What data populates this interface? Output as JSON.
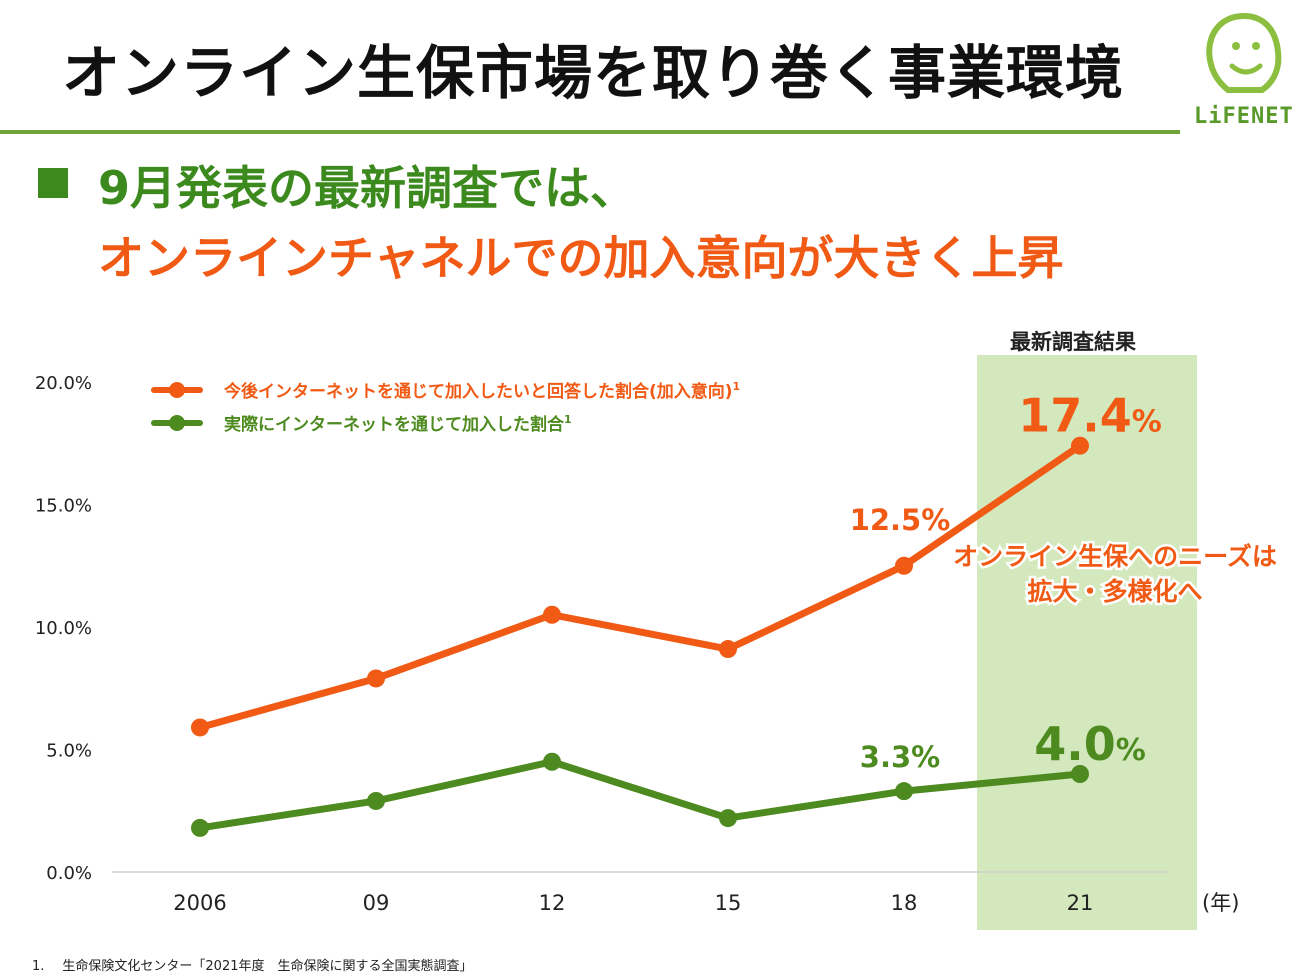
{
  "header": {
    "title": "オンライン生保市場を取り巻く事業環境",
    "logo_text": "LiFENET"
  },
  "headline": {
    "line1": "9月発表の最新調査では、",
    "line2": "オンラインチャネルでの加入意向が大きく上昇"
  },
  "highlight_label": "最新調査結果",
  "annotation": {
    "line1": "オンライン生保へのニーズは",
    "line2": "拡大・多様化へ"
  },
  "footnote": {
    "number": "1.",
    "text": "生命保険文化センター「2021年度　生命保険に関する全国実態調査」"
  },
  "colors": {
    "orange": "#f05a14",
    "green": "#4d8a1f",
    "highlight": "#d3e8bd",
    "rule": "#6fa33a"
  },
  "chart_data": {
    "type": "line",
    "categories": [
      "2006",
      "09",
      "12",
      "15",
      "18",
      "21"
    ],
    "x_unit_label": "(年)",
    "ylim": [
      0,
      20
    ],
    "y_ticks": [
      "0.0%",
      "5.0%",
      "10.0%",
      "15.0%",
      "20.0%"
    ],
    "y_tick_values": [
      0,
      5,
      10,
      15,
      20
    ],
    "legend_placement": "top-left",
    "grid": false,
    "series": [
      {
        "name": "今後インターネットを通じて加入したいと回答した割合(加入意向)",
        "superscript": "1",
        "color": "#f05a14",
        "values": [
          5.9,
          7.9,
          10.5,
          9.1,
          12.5,
          17.4
        ],
        "labels": [
          {
            "index": 4,
            "text": "12.5%"
          },
          {
            "index": 5,
            "number": "17.4",
            "unit": "%"
          }
        ]
      },
      {
        "name": "実際にインターネットを通じて加入した割合",
        "superscript": "1",
        "color": "#4d8a1f",
        "values": [
          1.8,
          2.9,
          4.5,
          2.2,
          3.3,
          4.0
        ],
        "labels": [
          {
            "index": 4,
            "text": "3.3%"
          },
          {
            "index": 5,
            "number": "4.0",
            "unit": "%"
          }
        ]
      }
    ]
  }
}
